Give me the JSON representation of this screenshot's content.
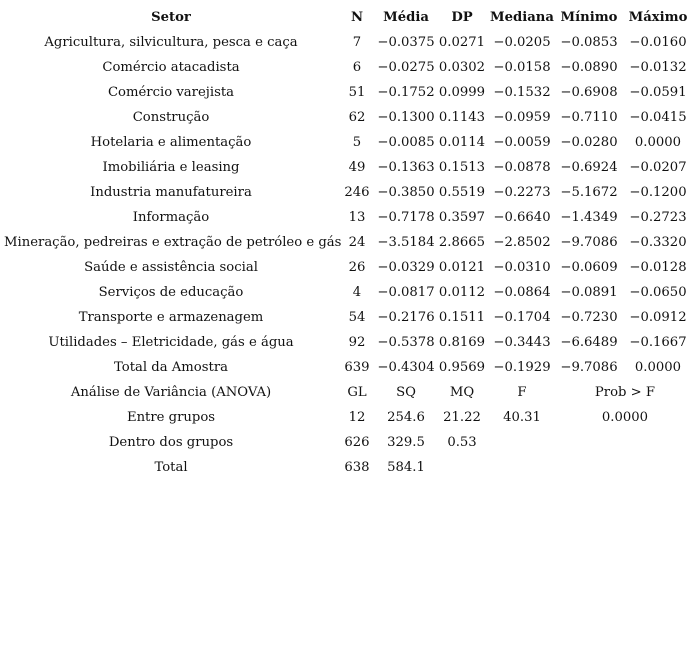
{
  "headers": [
    "Setor",
    "N",
    "Média",
    "DP",
    "Mediana",
    "Mínimo",
    "Máximo"
  ],
  "rows": [
    [
      "Agricultura, silvicultura, pesca e caça",
      "7",
      "−0.0375",
      "0.0271",
      "−0.0205",
      "−0.0853",
      "−0.0160"
    ],
    [
      "Comércio atacadista",
      "6",
      "−0.0275",
      "0.0302",
      "−0.0158",
      "−0.0890",
      "−0.0132"
    ],
    [
      "Comércio varejista",
      "51",
      "−0.1752",
      "0.0999",
      "−0.1532",
      "−0.6908",
      "−0.0591"
    ],
    [
      "Construção",
      "62",
      "−0.1300",
      "0.1143",
      "−0.0959",
      "−0.7110",
      "−0.0415"
    ],
    [
      "Hotelaria e alimentação",
      "5",
      "−0.0085",
      "0.0114",
      "−0.0059",
      "−0.0280",
      "0.0000"
    ],
    [
      "Imobiliária e leasing",
      "49",
      "−0.1363",
      "0.1513",
      "−0.0878",
      "−0.6924",
      "−0.0207"
    ],
    [
      "Industria manufatureira",
      "246",
      "−0.3850",
      "0.5519",
      "−0.2273",
      "−5.1672",
      "−0.1200"
    ],
    [
      "Informação",
      "13",
      "−0.7178",
      "0.3597",
      "−0.6640",
      "−1.4349",
      "−0.2723"
    ],
    [
      "Mineração, pedreiras e extração de petróleo e gás",
      "24",
      "−3.5184",
      "2.8665",
      "−2.8502",
      "−9.7086",
      "−0.3320"
    ],
    [
      "Saúde e assistência social",
      "26",
      "−0.0329",
      "0.0121",
      "−0.0310",
      "−0.0609",
      "−0.0128"
    ],
    [
      "Serviços de educação",
      "4",
      "−0.0817",
      "0.0112",
      "−0.0864",
      "−0.0891",
      "−0.0650"
    ],
    [
      "Transporte e armazenagem",
      "54",
      "−0.2176",
      "0.1511",
      "−0.1704",
      "−0.7230",
      "−0.0912"
    ],
    [
      "Utilidades – Eletricidade, gás e água",
      "92",
      "−0.5378",
      "0.8169",
      "−0.3443",
      "−6.6489",
      "−0.1667"
    ],
    [
      "Total da Amostra",
      "639",
      "−0.4304",
      "0.9569",
      "−0.1929",
      "−9.7086",
      "0.0000"
    ]
  ],
  "anova": {
    "header": [
      "Análise de Variância (ANOVA)",
      "GL",
      "SQ",
      "MQ",
      "F",
      "Prob > F"
    ],
    "rows": [
      [
        "Entre grupos",
        "12",
        "254.6",
        "21.22",
        "40.31",
        "0.0000"
      ],
      [
        "Dentro dos grupos",
        "626",
        "329.5",
        "0.53",
        "",
        ""
      ],
      [
        "Total",
        "638",
        "584.1",
        "",
        "",
        ""
      ]
    ]
  }
}
